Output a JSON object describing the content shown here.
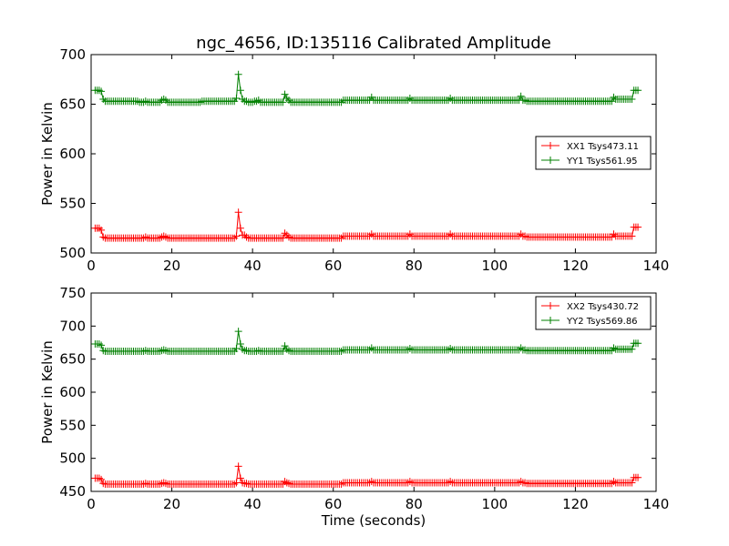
{
  "chart_data": [
    {
      "type": "line",
      "title": "ngc_4656, ID:135116 Calibrated Amplitude",
      "xlabel": "",
      "ylabel": "Power in Kelvin",
      "xlim": [
        0,
        140
      ],
      "ylim": [
        500,
        700
      ],
      "xticks": [
        0,
        20,
        40,
        60,
        80,
        100,
        120,
        140
      ],
      "yticks": [
        500,
        550,
        600,
        650,
        700
      ],
      "legend_position": "center-right",
      "x_start": 1,
      "x_step": 0.5,
      "series": [
        {
          "name": "XX1 Tsys473.11",
          "color": "#ff0000",
          "values": [
            525,
            525,
            525,
            523,
            516,
            515,
            515,
            515,
            515,
            515,
            515,
            515,
            515,
            515,
            515,
            515,
            515,
            515,
            515,
            515,
            515,
            515,
            515,
            515,
            515,
            516,
            515,
            515,
            515,
            515,
            515,
            515,
            515,
            516,
            517,
            516,
            515,
            515,
            515,
            515,
            515,
            515,
            515,
            515,
            515,
            515,
            515,
            515,
            515,
            515,
            515,
            515,
            515,
            515,
            515,
            515,
            515,
            515,
            515,
            515,
            515,
            515,
            515,
            515,
            515,
            515,
            515,
            515,
            515,
            515,
            517,
            541,
            525,
            518,
            518,
            516,
            515,
            515,
            515,
            515,
            515,
            515,
            515,
            515,
            515,
            515,
            515,
            515,
            515,
            515,
            515,
            515,
            515,
            515,
            520,
            518,
            516,
            515,
            515,
            515,
            515,
            515,
            515,
            515,
            515,
            515,
            515,
            515,
            515,
            515,
            515,
            515,
            515,
            515,
            515,
            515,
            515,
            515,
            515,
            515,
            515,
            515,
            515,
            517,
            517,
            517,
            517,
            517,
            517,
            517,
            517,
            517,
            517,
            517,
            517,
            517,
            517,
            519,
            517,
            517,
            517,
            517,
            517,
            517,
            517,
            517,
            517,
            517,
            517,
            517,
            517,
            517,
            517,
            517,
            517,
            517,
            519,
            517,
            517,
            517,
            517,
            517,
            517,
            517,
            517,
            517,
            517,
            517,
            517,
            517,
            517,
            517,
            517,
            517,
            517,
            517,
            519,
            517,
            517,
            517,
            517,
            517,
            517,
            517,
            517,
            517,
            517,
            517,
            517,
            517,
            517,
            517,
            517,
            517,
            517,
            517,
            517,
            517,
            517,
            517,
            517,
            517,
            517,
            517,
            517,
            517,
            517,
            517,
            517,
            517,
            517,
            519,
            517,
            517,
            516,
            516,
            516,
            516,
            516,
            516,
            516,
            516,
            516,
            516,
            516,
            516,
            516,
            516,
            516,
            516,
            516,
            516,
            516,
            516,
            516,
            516,
            516,
            516,
            516,
            516,
            516,
            516,
            516,
            516,
            516,
            516,
            516,
            516,
            516,
            516,
            516,
            516,
            516,
            516,
            516,
            516,
            516,
            519,
            517,
            517,
            517,
            517,
            517,
            517,
            517,
            517,
            517,
            526,
            526,
            526
          ]
        },
        {
          "name": "YY1 Tsys561.95",
          "color": "#008000",
          "values": [
            664,
            664,
            664,
            663,
            655,
            653,
            653,
            653,
            653,
            653,
            653,
            653,
            653,
            653,
            653,
            653,
            653,
            653,
            653,
            653,
            653,
            653,
            652,
            652,
            652,
            653,
            652,
            652,
            652,
            652,
            652,
            652,
            652,
            654,
            655,
            654,
            652,
            652,
            652,
            652,
            652,
            652,
            652,
            652,
            652,
            652,
            652,
            652,
            652,
            652,
            652,
            652,
            652,
            653,
            653,
            653,
            653,
            653,
            653,
            653,
            653,
            653,
            653,
            653,
            653,
            653,
            653,
            653,
            653,
            653,
            656,
            680,
            664,
            655,
            653,
            653,
            652,
            652,
            652,
            653,
            653,
            654,
            652,
            652,
            652,
            652,
            652,
            652,
            652,
            652,
            652,
            652,
            652,
            652,
            660,
            656,
            654,
            652,
            652,
            652,
            652,
            652,
            652,
            652,
            652,
            652,
            652,
            652,
            652,
            652,
            652,
            652,
            652,
            652,
            652,
            652,
            652,
            652,
            652,
            652,
            652,
            652,
            652,
            654,
            654,
            654,
            654,
            654,
            654,
            654,
            654,
            654,
            654,
            654,
            654,
            654,
            654,
            657,
            654,
            654,
            654,
            654,
            654,
            654,
            654,
            654,
            654,
            654,
            654,
            654,
            654,
            654,
            654,
            654,
            654,
            654,
            656,
            654,
            654,
            654,
            654,
            654,
            654,
            654,
            654,
            654,
            654,
            654,
            654,
            654,
            654,
            654,
            654,
            654,
            654,
            654,
            656,
            654,
            654,
            654,
            654,
            654,
            654,
            654,
            654,
            654,
            654,
            654,
            654,
            654,
            654,
            654,
            654,
            654,
            654,
            654,
            654,
            654,
            654,
            654,
            654,
            654,
            654,
            654,
            654,
            654,
            654,
            654,
            654,
            654,
            654,
            658,
            654,
            654,
            653,
            653,
            653,
            653,
            653,
            653,
            653,
            653,
            653,
            653,
            653,
            653,
            653,
            653,
            653,
            653,
            653,
            653,
            653,
            653,
            653,
            653,
            653,
            653,
            653,
            653,
            653,
            653,
            653,
            653,
            653,
            653,
            653,
            653,
            653,
            653,
            653,
            653,
            653,
            653,
            653,
            653,
            653,
            657,
            655,
            655,
            655,
            655,
            655,
            655,
            655,
            655,
            655,
            664,
            664,
            664
          ]
        }
      ]
    },
    {
      "type": "line",
      "title": "",
      "xlabel": "Time (seconds)",
      "ylabel": "Power in Kelvin",
      "xlim": [
        0,
        140
      ],
      "ylim": [
        450,
        750
      ],
      "xticks": [
        0,
        20,
        40,
        60,
        80,
        100,
        120,
        140
      ],
      "yticks": [
        450,
        500,
        550,
        600,
        650,
        700,
        750
      ],
      "legend_position": "top-right",
      "x_start": 1,
      "x_step": 0.5,
      "series": [
        {
          "name": "XX2 Tsys430.72",
          "color": "#ff0000",
          "values": [
            470,
            470,
            470,
            468,
            462,
            461,
            461,
            461,
            461,
            461,
            461,
            461,
            461,
            461,
            461,
            461,
            461,
            461,
            461,
            461,
            461,
            461,
            461,
            461,
            461,
            462,
            461,
            461,
            461,
            461,
            461,
            461,
            461,
            462,
            463,
            462,
            461,
            461,
            461,
            461,
            461,
            461,
            461,
            461,
            461,
            461,
            461,
            461,
            461,
            461,
            461,
            461,
            461,
            461,
            461,
            461,
            461,
            461,
            461,
            461,
            461,
            461,
            461,
            461,
            461,
            461,
            461,
            461,
            461,
            461,
            463,
            488,
            470,
            463,
            462,
            462,
            461,
            461,
            461,
            461,
            461,
            461,
            461,
            461,
            461,
            461,
            461,
            461,
            461,
            461,
            461,
            461,
            461,
            461,
            465,
            463,
            462,
            461,
            461,
            461,
            461,
            461,
            461,
            461,
            461,
            461,
            461,
            461,
            461,
            461,
            461,
            461,
            461,
            461,
            461,
            461,
            461,
            461,
            461,
            461,
            461,
            461,
            461,
            463,
            463,
            463,
            463,
            463,
            463,
            463,
            463,
            463,
            463,
            463,
            463,
            463,
            463,
            465,
            463,
            463,
            463,
            463,
            463,
            463,
            463,
            463,
            463,
            463,
            463,
            463,
            463,
            463,
            463,
            463,
            463,
            463,
            465,
            463,
            463,
            463,
            463,
            463,
            463,
            463,
            463,
            463,
            463,
            463,
            463,
            463,
            463,
            463,
            463,
            463,
            463,
            463,
            465,
            463,
            463,
            463,
            463,
            463,
            463,
            463,
            463,
            463,
            463,
            463,
            463,
            463,
            463,
            463,
            463,
            463,
            463,
            463,
            463,
            463,
            463,
            463,
            463,
            463,
            463,
            463,
            463,
            463,
            463,
            463,
            463,
            463,
            463,
            465,
            463,
            463,
            462,
            462,
            462,
            462,
            462,
            462,
            462,
            462,
            462,
            462,
            462,
            462,
            462,
            462,
            462,
            462,
            462,
            462,
            462,
            462,
            462,
            462,
            462,
            462,
            462,
            462,
            462,
            462,
            462,
            462,
            462,
            462,
            462,
            462,
            462,
            462,
            462,
            462,
            462,
            462,
            462,
            462,
            462,
            465,
            463,
            463,
            463,
            463,
            463,
            463,
            463,
            463,
            463,
            471,
            471,
            471
          ]
        },
        {
          "name": "YY2 Tsys569.86",
          "color": "#008000",
          "values": [
            673,
            673,
            673,
            671,
            663,
            662,
            662,
            662,
            662,
            662,
            662,
            662,
            662,
            662,
            662,
            662,
            662,
            662,
            662,
            662,
            662,
            662,
            662,
            662,
            662,
            663,
            662,
            662,
            662,
            662,
            662,
            662,
            662,
            663,
            664,
            663,
            662,
            662,
            662,
            662,
            662,
            662,
            662,
            662,
            662,
            662,
            662,
            662,
            662,
            662,
            662,
            662,
            662,
            662,
            662,
            662,
            662,
            662,
            662,
            662,
            662,
            662,
            662,
            662,
            662,
            662,
            662,
            662,
            662,
            662,
            666,
            692,
            673,
            665,
            663,
            663,
            662,
            662,
            662,
            662,
            662,
            663,
            662,
            662,
            662,
            662,
            662,
            662,
            662,
            662,
            662,
            662,
            662,
            662,
            670,
            665,
            663,
            662,
            662,
            662,
            662,
            662,
            662,
            662,
            662,
            662,
            662,
            662,
            662,
            662,
            662,
            662,
            662,
            662,
            662,
            662,
            662,
            662,
            662,
            662,
            662,
            662,
            662,
            664,
            664,
            664,
            664,
            664,
            664,
            664,
            664,
            664,
            664,
            664,
            664,
            664,
            664,
            667,
            664,
            664,
            664,
            664,
            664,
            664,
            664,
            664,
            664,
            664,
            664,
            664,
            664,
            664,
            664,
            664,
            664,
            664,
            666,
            664,
            664,
            664,
            664,
            664,
            664,
            664,
            664,
            664,
            664,
            664,
            664,
            664,
            664,
            664,
            664,
            664,
            664,
            664,
            666,
            664,
            664,
            664,
            664,
            664,
            664,
            664,
            664,
            664,
            664,
            664,
            664,
            664,
            664,
            664,
            664,
            664,
            664,
            664,
            664,
            664,
            664,
            664,
            664,
            664,
            664,
            664,
            664,
            664,
            664,
            664,
            664,
            664,
            664,
            667,
            664,
            664,
            663,
            663,
            663,
            663,
            663,
            663,
            663,
            663,
            663,
            663,
            663,
            663,
            663,
            663,
            663,
            663,
            663,
            663,
            663,
            663,
            663,
            663,
            663,
            663,
            663,
            663,
            663,
            663,
            663,
            663,
            663,
            663,
            663,
            663,
            663,
            663,
            663,
            663,
            663,
            663,
            663,
            663,
            663,
            667,
            665,
            665,
            665,
            665,
            665,
            665,
            665,
            665,
            665,
            674,
            674,
            674
          ]
        }
      ]
    }
  ]
}
